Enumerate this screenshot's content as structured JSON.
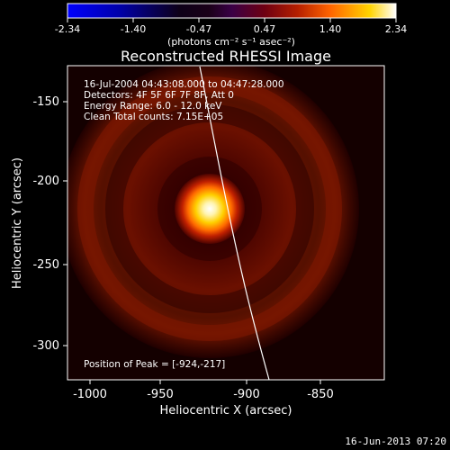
{
  "colorbar": {
    "ticks": [
      "-2.34",
      "-1.40",
      "-0.47",
      "0.47",
      "1.40",
      "2.34"
    ],
    "label": "(photons cm⁻² s⁻¹ asec⁻²)"
  },
  "plot": {
    "title": "Reconstructed RHESSI Image",
    "xlabel": "Heliocentric X (arcsec)",
    "ylabel": "Heliocentric Y (arcsec)",
    "xticks": [
      "-1000",
      "-950",
      "-900",
      "-850"
    ],
    "yticks": [
      "-150",
      "-200",
      "-250",
      "-300"
    ]
  },
  "annotations": {
    "time_range": "16-Jul-2004 04:43:08.000 to 04:47:28.000",
    "detectors": "Detectors: 4F 5F 6F 7F 8F, Att 0",
    "energy": "Energy Range: 6.0 - 12.0 keV",
    "clean": "Clean    Total counts: 7.15E+05",
    "peak": "Position of Peak = [-924,-217]"
  },
  "footer": {
    "date": "16-Jun-2013 07:20"
  }
}
